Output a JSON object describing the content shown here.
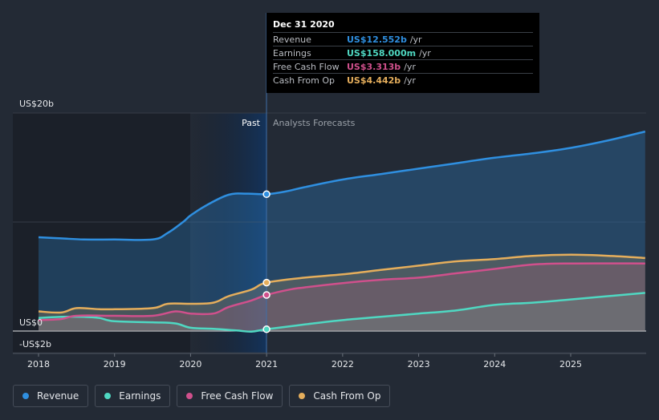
{
  "chart_data": {
    "type": "area",
    "x_ticks": [
      "2018",
      "2019",
      "2020",
      "2021",
      "2022",
      "2023",
      "2024",
      "2025"
    ],
    "y_ticks": [
      {
        "value": 20,
        "label": "US$20b"
      },
      {
        "value": 0,
        "label": "US$0"
      },
      {
        "value": -2,
        "label": "-US$2b"
      }
    ],
    "ylim": [
      -2,
      20.5
    ],
    "xlim": [
      2017.83,
      2025.98
    ],
    "split_year": 2021,
    "past_label": "Past",
    "forecast_label": "Analysts Forecasts",
    "grid": true,
    "series": [
      {
        "name": "Revenue",
        "color": "#2f8fe0",
        "points": [
          [
            2018.0,
            8.6
          ],
          [
            2018.3,
            8.5
          ],
          [
            2018.6,
            8.4
          ],
          [
            2019.0,
            8.4
          ],
          [
            2019.5,
            8.4
          ],
          [
            2019.7,
            9.0
          ],
          [
            2019.9,
            10.0
          ],
          [
            2020.0,
            10.6
          ],
          [
            2020.2,
            11.5
          ],
          [
            2020.5,
            12.5
          ],
          [
            2020.75,
            12.6
          ],
          [
            2021.0,
            12.55
          ],
          [
            2021.25,
            12.8
          ],
          [
            2021.5,
            13.2
          ],
          [
            2022.0,
            13.9
          ],
          [
            2022.5,
            14.4
          ],
          [
            2023.0,
            14.9
          ],
          [
            2023.5,
            15.4
          ],
          [
            2024.0,
            15.9
          ],
          [
            2024.5,
            16.3
          ],
          [
            2025.0,
            16.8
          ],
          [
            2025.5,
            17.5
          ],
          [
            2025.98,
            18.3
          ]
        ]
      },
      {
        "name": "Earnings",
        "color": "#4fd8c2",
        "points": [
          [
            2018.0,
            1.2
          ],
          [
            2018.3,
            1.3
          ],
          [
            2018.6,
            1.3
          ],
          [
            2018.8,
            1.2
          ],
          [
            2019.0,
            0.9
          ],
          [
            2019.5,
            0.8
          ],
          [
            2019.8,
            0.7
          ],
          [
            2020.0,
            0.3
          ],
          [
            2020.3,
            0.2
          ],
          [
            2020.6,
            0.05
          ],
          [
            2020.8,
            -0.05
          ],
          [
            2021.0,
            0.16
          ],
          [
            2021.5,
            0.6
          ],
          [
            2022.0,
            1.0
          ],
          [
            2022.5,
            1.3
          ],
          [
            2023.0,
            1.6
          ],
          [
            2023.5,
            1.9
          ],
          [
            2024.0,
            2.4
          ],
          [
            2024.5,
            2.6
          ],
          [
            2025.0,
            2.9
          ],
          [
            2025.98,
            3.5
          ]
        ]
      },
      {
        "name": "Free Cash Flow",
        "color": "#d0508c",
        "points": [
          [
            2018.0,
            1.0
          ],
          [
            2018.3,
            1.1
          ],
          [
            2018.5,
            1.4
          ],
          [
            2019.0,
            1.4
          ],
          [
            2019.5,
            1.4
          ],
          [
            2019.8,
            1.8
          ],
          [
            2020.0,
            1.6
          ],
          [
            2020.3,
            1.6
          ],
          [
            2020.5,
            2.2
          ],
          [
            2020.8,
            2.8
          ],
          [
            2021.0,
            3.31
          ],
          [
            2021.3,
            3.8
          ],
          [
            2021.5,
            4.0
          ],
          [
            2022.0,
            4.4
          ],
          [
            2022.5,
            4.7
          ],
          [
            2023.0,
            4.9
          ],
          [
            2023.5,
            5.3
          ],
          [
            2024.0,
            5.7
          ],
          [
            2024.5,
            6.1
          ],
          [
            2025.0,
            6.2
          ],
          [
            2025.98,
            6.2
          ]
        ]
      },
      {
        "name": "Cash From Op",
        "color": "#e5ae5c",
        "points": [
          [
            2018.0,
            1.8
          ],
          [
            2018.3,
            1.7
          ],
          [
            2018.5,
            2.1
          ],
          [
            2018.8,
            2.0
          ],
          [
            2019.0,
            2.0
          ],
          [
            2019.5,
            2.1
          ],
          [
            2019.7,
            2.5
          ],
          [
            2020.0,
            2.5
          ],
          [
            2020.3,
            2.6
          ],
          [
            2020.5,
            3.2
          ],
          [
            2020.8,
            3.8
          ],
          [
            2021.0,
            4.44
          ],
          [
            2021.5,
            4.9
          ],
          [
            2022.0,
            5.2
          ],
          [
            2022.5,
            5.6
          ],
          [
            2023.0,
            6.0
          ],
          [
            2023.5,
            6.4
          ],
          [
            2024.0,
            6.6
          ],
          [
            2024.5,
            6.9
          ],
          [
            2025.0,
            7.0
          ],
          [
            2025.5,
            6.9
          ],
          [
            2025.98,
            6.7
          ]
        ]
      }
    ],
    "highlight_x": 2021
  },
  "tooltip": {
    "date": "Dec 31 2020",
    "rows": [
      {
        "label": "Revenue",
        "value": "US$12.552b",
        "unit": "/yr",
        "color": "#2f8fe0"
      },
      {
        "label": "Earnings",
        "value": "US$158.000m",
        "unit": "/yr",
        "color": "#4fd8c2"
      },
      {
        "label": "Free Cash Flow",
        "value": "US$3.313b",
        "unit": "/yr",
        "color": "#d0508c"
      },
      {
        "label": "Cash From Op",
        "value": "US$4.442b",
        "unit": "/yr",
        "color": "#e5ae5c"
      }
    ]
  },
  "legend": [
    {
      "label": "Revenue",
      "color": "#2f8fe0"
    },
    {
      "label": "Earnings",
      "color": "#4fd8c2"
    },
    {
      "label": "Free Cash Flow",
      "color": "#d0508c"
    },
    {
      "label": "Cash From Op",
      "color": "#e5ae5c"
    }
  ]
}
